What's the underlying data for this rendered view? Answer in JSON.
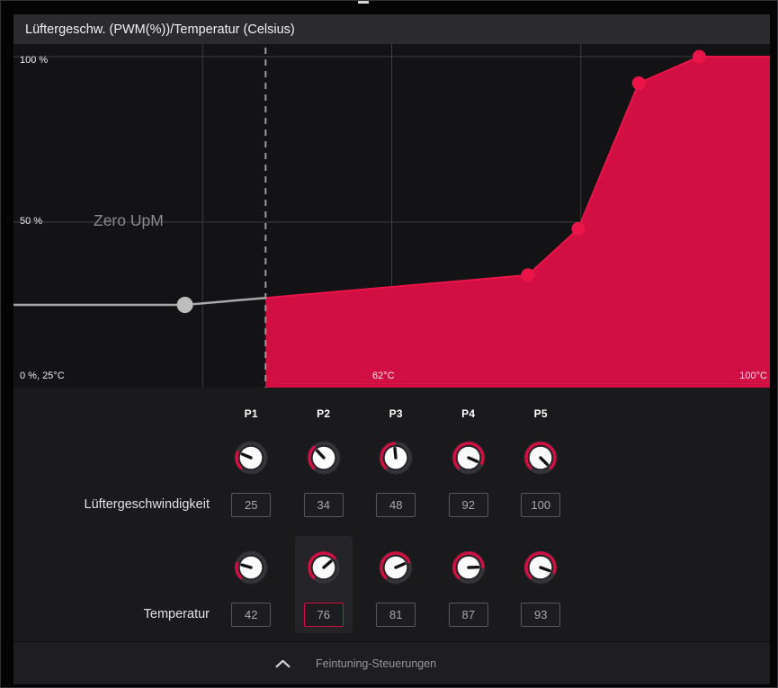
{
  "header": {
    "title": "Lüftergeschw. (PWM(%))/Temperatur (Celsius)"
  },
  "chart_data": {
    "type": "area",
    "title": "Lüftergeschw. (PWM(%))/Temperatur (Celsius)",
    "xlabel": "Temperatur (Celsius)",
    "ylabel": "Lüftergeschw. (PWM %)",
    "x_range": [
      25,
      100
    ],
    "y_range": [
      0,
      100
    ],
    "grid": "on",
    "zero_rpm_label": "Zero UpM",
    "zero_rpm_threshold_c": 50,
    "axis_labels": {
      "y_100": "100 %",
      "y_50": "50 %",
      "origin": "0 %, 25°C",
      "x_mid": "62°C",
      "x_max": "100°C"
    },
    "points": [
      {
        "name": "P1",
        "temp_c": 42,
        "fan_pct": 25,
        "zero_rpm_zone": true
      },
      {
        "name": "P2",
        "temp_c": 76,
        "fan_pct": 34
      },
      {
        "name": "P3",
        "temp_c": 81,
        "fan_pct": 48
      },
      {
        "name": "P4",
        "temp_c": 87,
        "fan_pct": 92
      },
      {
        "name": "P5",
        "temp_c": 93,
        "fan_pct": 100
      }
    ],
    "colors": {
      "accent": "#d20f42",
      "dot": "#ea1448",
      "gray_line": "#a9a9a9",
      "gray_dot": "#bdbdbd",
      "grid": "#3d3d40",
      "dashed": "#9a9a9a"
    }
  },
  "controls": {
    "columns": [
      "P1",
      "P2",
      "P3",
      "P4",
      "P5"
    ],
    "fan_row": {
      "label": "Lüftergeschwindigkeit",
      "min": 0,
      "max": 100,
      "values": [
        25,
        34,
        48,
        92,
        100
      ]
    },
    "temp_row": {
      "label": "Temperatur",
      "min": 25,
      "max": 100,
      "values": [
        42,
        76,
        81,
        87,
        93
      ],
      "selected_index": 1
    }
  },
  "footer": {
    "label": "Feintuning-Steuerungen",
    "icon": "chevron-up"
  }
}
